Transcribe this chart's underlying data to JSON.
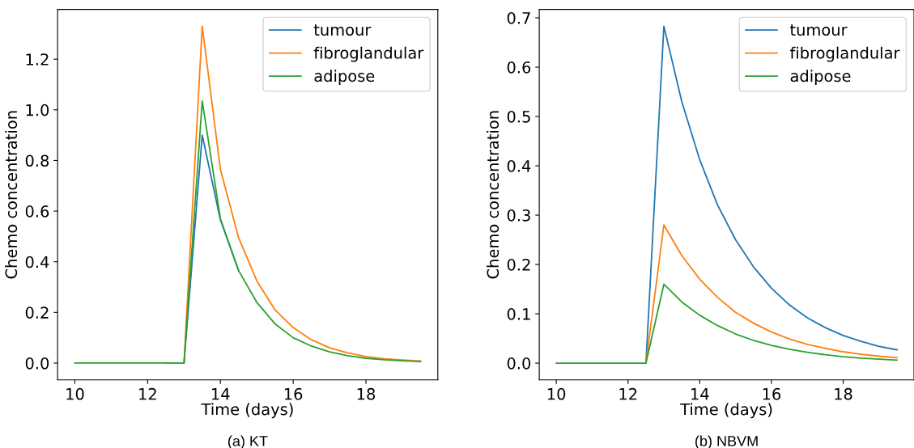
{
  "chart_data": [
    {
      "type": "line",
      "xlabel": "Time (days)",
      "ylabel": "Chemo concentration",
      "annotations": [
        "(a) KT"
      ],
      "legend": "top right",
      "grid": false,
      "x": [
        10,
        10.5,
        11,
        11.5,
        12,
        12.5,
        13,
        13.5,
        14,
        14.5,
        15,
        15.5,
        16,
        16.5,
        17,
        17.5,
        18,
        18.5,
        19,
        19.5
      ],
      "xlim": [
        9.525,
        19.975
      ],
      "xticks": [
        10,
        12,
        14,
        16,
        18
      ],
      "ylim": [
        -0.0665,
        1.3965
      ],
      "yticks": [
        {
          "value": 0,
          "label": "0.0"
        },
        {
          "value": 0.2,
          "label": "0.2"
        },
        {
          "value": 0.4,
          "label": "0.4"
        },
        {
          "value": 0.6,
          "label": "0.6"
        },
        {
          "value": 0.8,
          "label": "0.8"
        },
        {
          "value": 1.0,
          "label": "1.0"
        },
        {
          "value": 1.2,
          "label": "1.2"
        }
      ],
      "series": [
        {
          "name": "tumour",
          "color": "#1f77b4",
          "values": [
            null,
            null,
            null,
            null,
            null,
            null,
            0,
            0.9,
            0.565,
            0.365,
            null,
            null,
            null,
            null,
            null,
            null,
            null,
            null,
            null,
            null
          ]
        },
        {
          "name": "fibroglandular",
          "color": "#ff7f0e",
          "values": [
            null,
            null,
            null,
            null,
            null,
            0,
            0,
            1.33,
            0.765,
            0.495,
            0.325,
            0.21,
            0.14,
            0.092,
            0.06,
            0.04,
            0.026,
            0.017,
            0.012,
            0.008
          ]
        },
        {
          "name": "adipose",
          "color": "#2ca02c",
          "values": [
            0,
            0,
            0,
            0,
            0,
            0,
            0,
            1.035,
            0.57,
            0.365,
            0.24,
            0.155,
            0.1,
            0.067,
            0.044,
            0.029,
            0.019,
            0.013,
            0.009,
            0.006
          ]
        }
      ]
    },
    {
      "type": "line",
      "xlabel": "Time (days)",
      "ylabel": "Chemo concentration",
      "annotations": [
        "(b) NBVM"
      ],
      "legend": "top right",
      "grid": false,
      "x": [
        10,
        10.5,
        11,
        11.5,
        12,
        12.5,
        13,
        13.5,
        14,
        14.5,
        15,
        15.5,
        16,
        16.5,
        17,
        17.5,
        18,
        18.5,
        19,
        19.5
      ],
      "xlim": [
        9.525,
        19.975
      ],
      "xticks": [
        10,
        12,
        14,
        16,
        18
      ],
      "ylim": [
        -0.034,
        0.717
      ],
      "yticks": [
        {
          "value": 0,
          "label": "0.0"
        },
        {
          "value": 0.1,
          "label": "0.1"
        },
        {
          "value": 0.2,
          "label": "0.2"
        },
        {
          "value": 0.3,
          "label": "0.3"
        },
        {
          "value": 0.4,
          "label": "0.4"
        },
        {
          "value": 0.5,
          "label": "0.5"
        },
        {
          "value": 0.6,
          "label": "0.6"
        },
        {
          "value": 0.7,
          "label": "0.7"
        }
      ],
      "series": [
        {
          "name": "tumour",
          "color": "#1f77b4",
          "values": [
            null,
            null,
            null,
            null,
            null,
            0,
            0.683,
            0.53,
            0.412,
            0.32,
            0.25,
            0.195,
            0.152,
            0.118,
            0.092,
            0.072,
            0.056,
            0.044,
            0.034,
            0.027
          ]
        },
        {
          "name": "fibroglandular",
          "color": "#ff7f0e",
          "values": [
            null,
            null,
            null,
            null,
            null,
            0,
            0.28,
            0.218,
            0.17,
            0.133,
            0.103,
            0.081,
            0.063,
            0.049,
            0.038,
            0.03,
            0.023,
            0.018,
            0.014,
            0.011
          ]
        },
        {
          "name": "adipose",
          "color": "#2ca02c",
          "values": [
            0,
            0,
            0,
            0,
            0,
            0,
            0.16,
            0.124,
            0.097,
            0.076,
            0.059,
            0.046,
            0.036,
            0.028,
            0.022,
            0.017,
            0.013,
            0.01,
            0.008,
            0.006
          ]
        }
      ]
    }
  ]
}
